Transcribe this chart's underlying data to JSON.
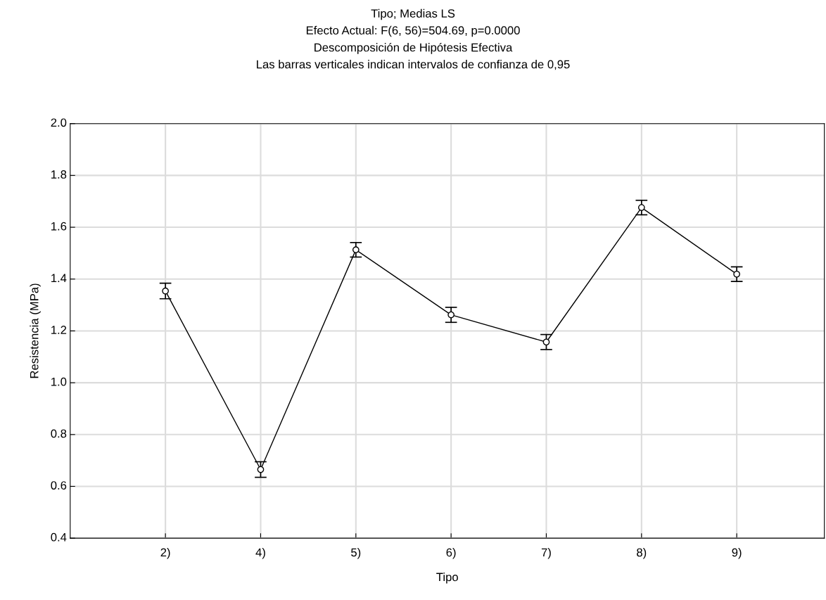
{
  "chart_data": {
    "type": "line",
    "title": "Tipo; Medias LS\nEfecto Actual: F(6, 56)=504.69, p=0.0000\nDescomposición de Hipótesis Efectiva\nLas barras verticales indican intervalos de confianza de 0,95",
    "xlabel": "Tipo",
    "ylabel": "Resistencia (MPa)",
    "categories": [
      "2)",
      "4)",
      "5)",
      "6)",
      "7)",
      "8)",
      "9)"
    ],
    "series": [
      {
        "color": "#000000",
        "values": [
          1.354,
          0.665,
          1.513,
          1.262,
          1.157,
          1.676,
          1.419
        ],
        "errors": [
          0.03,
          0.03,
          0.028,
          0.029,
          0.029,
          0.028,
          0.028
        ]
      }
    ],
    "ylim": [
      0.4,
      2.0
    ],
    "yticks": [
      0.4,
      0.6,
      0.8,
      {
        "value": 1,
        "label": "1.0"
      },
      1.2,
      1.4,
      1.6,
      1.8,
      {
        "value": 2,
        "label": "2.0"
      }
    ],
    "grid": true,
    "marker": "circle",
    "line_style": "solid"
  }
}
